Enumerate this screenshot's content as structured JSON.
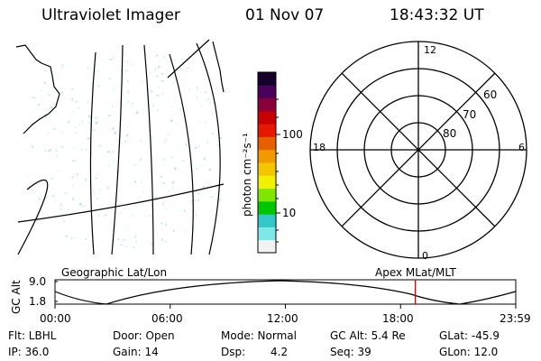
{
  "header": {
    "instrument": "Ultraviolet Imager",
    "date": "01 Nov 07",
    "time": "18:43:32 UT"
  },
  "colorbar": {
    "unit_label": "photon cm⁻²s⁻¹",
    "ticks": [
      "100",
      "10"
    ],
    "colors": [
      "#f2f2f2",
      "#7fe7e7",
      "#34c7c7",
      "#00c700",
      "#7fe700",
      "#f2f200",
      "#f2c700",
      "#f29a00",
      "#e76000",
      "#e71800",
      "#c70000",
      "#8a003a",
      "#4a005a",
      "#14002a"
    ]
  },
  "polar_plot": {
    "mlt_labels": [
      "12",
      "18",
      "6",
      "0"
    ],
    "mlat_labels": [
      "60",
      "70",
      "80"
    ]
  },
  "timeline": {
    "left_label": "Geographic Lat/Lon",
    "right_label": "Apex MLat/MLT",
    "axis_title": "GC Alt",
    "y_ticks": [
      "9.0",
      "1.8"
    ],
    "x_ticks": [
      "00:00",
      "06:00",
      "12:00",
      "18:00",
      "23:59"
    ],
    "current_time_fraction": 0.782,
    "marker_color": "#e00000"
  },
  "status": {
    "flt": "Flt: LBHL",
    "door": "Door: Open",
    "mode": "Mode: Normal",
    "gc_alt": "GC Alt: 5.4 Re",
    "glat": "GLat: -45.9",
    "ip": "IP: 36.0",
    "gain": "Gain: 14",
    "dsp_label": "Dsp:",
    "dsp_value": "4.2",
    "seq": "Seq: 39",
    "glon": "GLon: 12.0"
  }
}
